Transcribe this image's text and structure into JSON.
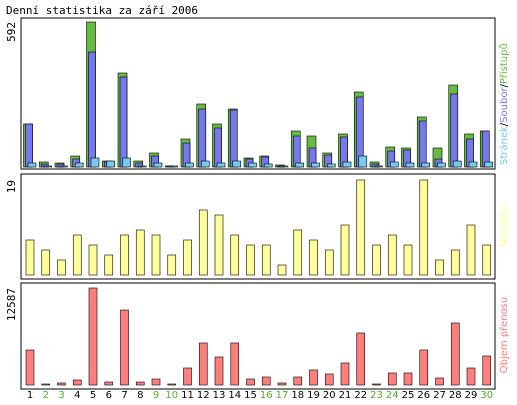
{
  "chart_data": {
    "type": "bar",
    "title": "Denní statistika za září 2006",
    "categories": [
      "1",
      "2",
      "3",
      "4",
      "5",
      "6",
      "7",
      "8",
      "9",
      "10",
      "11",
      "12",
      "13",
      "14",
      "15",
      "16",
      "17",
      "18",
      "19",
      "20",
      "21",
      "22",
      "23",
      "24",
      "25",
      "26",
      "27",
      "28",
      "29",
      "30"
    ],
    "weekend_categories": [
      "2",
      "3",
      "9",
      "10",
      "16",
      "17",
      "23",
      "24",
      "30"
    ],
    "colors": {
      "hits": "#66bb44",
      "files": "#7777ee",
      "pages": "#77ccee",
      "visits": "#ffff99",
      "volume": "#ff7f7f",
      "weekday_tick": "#000000",
      "weekend_tick": "#55aa33",
      "plot_background": "#ffffff",
      "frame": "#000000"
    },
    "panels": [
      {
        "id": "traffic",
        "max_label": "592",
        "ylim": [
          0,
          592
        ],
        "legend": {
          "pages": "Stránek",
          "sep1": "/",
          "files": "Soubor",
          "sep2": "/",
          "hits": "Přístupů"
        },
        "series": [
          {
            "name": "Přístupů",
            "key": "hits",
            "values": [
              176,
              21,
              16,
              46,
              592,
              26,
              384,
              26,
              56,
              5,
              116,
              256,
              176,
              236,
              36,
              46,
              9,
              146,
              126,
              56,
              136,
              306,
              21,
              81,
              76,
              206,
              76,
              336,
              136,
              146
            ]
          },
          {
            "name": "Soubor",
            "key": "files",
            "values": [
              176,
              11,
              11,
              31,
              470,
              21,
              368,
              16,
              46,
              4,
              96,
              236,
              161,
              231,
              31,
              41,
              6,
              126,
              76,
              51,
              121,
              286,
              11,
              66,
              71,
              186,
              31,
              296,
              116,
              146
            ]
          },
          {
            "name": "Stránek",
            "key": "pages",
            "values": [
              16,
              6,
              6,
              16,
              36,
              26,
              36,
              6,
              16,
              2,
              16,
              26,
              16,
              26,
              16,
              11,
              2,
              16,
              16,
              11,
              21,
              46,
              6,
              21,
              16,
              16,
              16,
              26,
              21,
              21
            ]
          }
        ]
      },
      {
        "id": "visits",
        "max_label": "19",
        "ylim": [
          0,
          19
        ],
        "legend": {
          "visits": "Návštěv"
        },
        "series": [
          {
            "name": "Návštěv",
            "key": "visits",
            "values": [
              7,
              5,
              3,
              8,
              6,
              4,
              8,
              9,
              8,
              4,
              7,
              13,
              12,
              8,
              6,
              6,
              2,
              9,
              7,
              5,
              10,
              19,
              6,
              8,
              6,
              19,
              3,
              5,
              10,
              6
            ]
          }
        ]
      },
      {
        "id": "volume",
        "max_label": "12587",
        "ylim": [
          0,
          12587
        ],
        "legend": {
          "volume": "Objem přenosu"
        },
        "series": [
          {
            "name": "Objem přenosu",
            "key": "volume",
            "values": [
              4500,
              180,
              220,
              700,
              12587,
              330,
              9700,
              330,
              800,
              130,
              2200,
              5400,
              3600,
              5500,
              750,
              1100,
              200,
              1100,
              1900,
              1400,
              2800,
              6700,
              160,
              1600,
              1600,
              4600,
              900,
              8100,
              2200,
              3800
            ]
          }
        ]
      }
    ]
  }
}
